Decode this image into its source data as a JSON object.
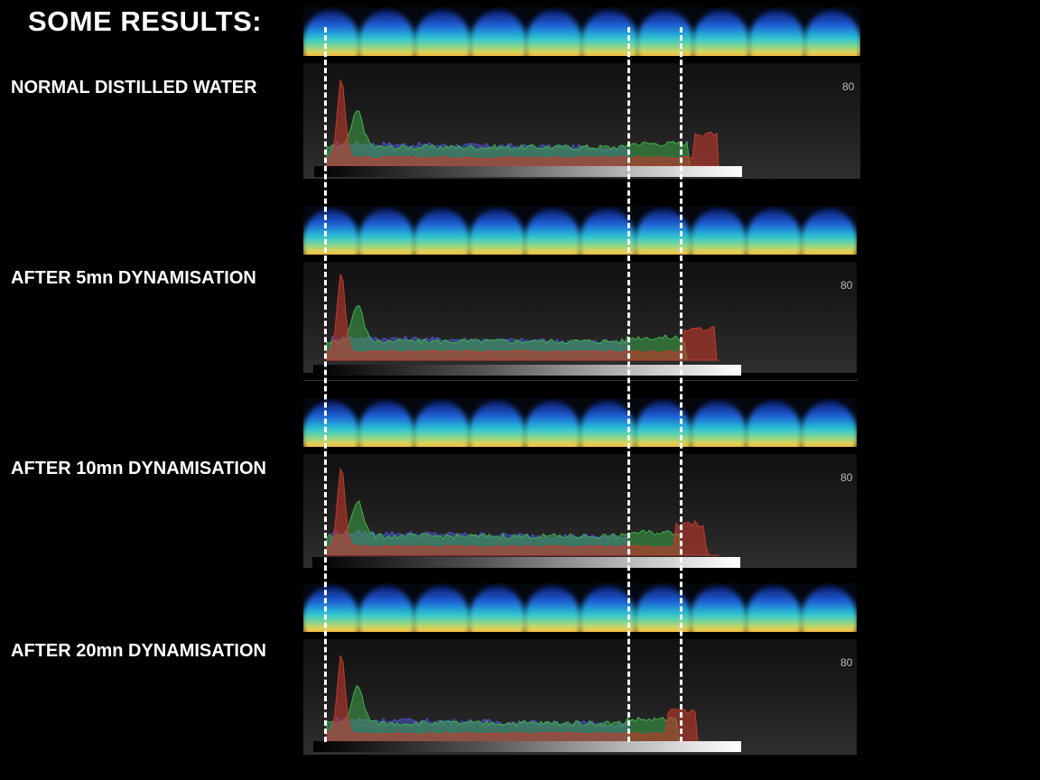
{
  "title": "SOME RESULTS:",
  "rows": [
    {
      "label": "NORMAL DISTILLED WATER",
      "scale_max": "80"
    },
    {
      "label": "AFTER 5mn DYNAMISATION",
      "scale_max": "80"
    },
    {
      "label": "AFTER 10mn DYNAMISATION",
      "scale_max": "80"
    },
    {
      "label": "AFTER 20mn DYNAMISATION",
      "scale_max": "80"
    }
  ],
  "histogram_colors": {
    "red": "#c0392b",
    "green": "#3fb04a",
    "blue": "#4a52c8"
  }
}
